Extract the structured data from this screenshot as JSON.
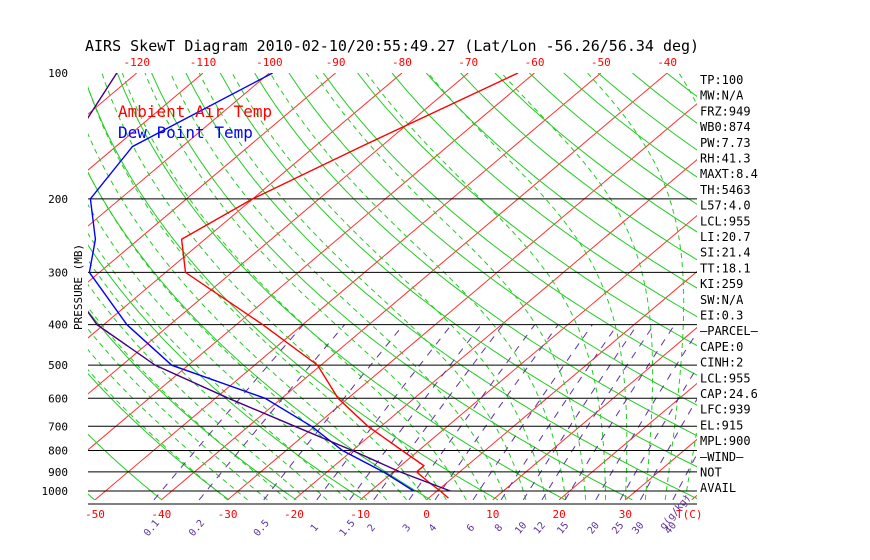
{
  "chart_data": {
    "type": "line",
    "title": "AIRS SkewT Diagram 2010-02-10/20:55:49.27 (Lat/Lon -56.26/56.34 deg)",
    "ylabel": "PRESSURE (MB)",
    "y_scale": "log",
    "ylim": [
      1050,
      100
    ],
    "top_temp_ticks": [
      "-120",
      "-110",
      "-100",
      "-90",
      "-80",
      "-70",
      "-60",
      "-50",
      "-40"
    ],
    "bottom_temp_ticks": [
      "-50",
      "-40",
      "-30",
      "-20",
      "-10",
      "0",
      "10",
      "20",
      "30"
    ],
    "bottom_temp_unit": "T(C)",
    "mixing_ratio_ticks": [
      "0.1",
      "0.2",
      "0.5",
      "1",
      "1.5",
      "2",
      "3",
      "4",
      "6",
      "8",
      "10",
      "12",
      "15",
      "20",
      "25",
      "30",
      "40"
    ],
    "mixing_ratio_unit": "g(g/kg)",
    "pressure_ticks": [
      "100",
      "200",
      "300",
      "400",
      "500",
      "600",
      "700",
      "800",
      "900",
      "1000"
    ],
    "legend": [
      {
        "name": "Ambient Air Temp",
        "color": "#ff0000"
      },
      {
        "name": "Dew Point Temp",
        "color": "#0000ff"
      }
    ],
    "series": [
      {
        "name": "Ambient Air Temp",
        "color": "#ff0000",
        "points": [
          {
            "p": 100,
            "t": -62.5
          },
          {
            "p": 150,
            "t": -73
          },
          {
            "p": 200,
            "t": -80
          },
          {
            "p": 250,
            "t": -83.5
          },
          {
            "p": 300,
            "t": -77
          },
          {
            "p": 400,
            "t": -56
          },
          {
            "p": 500,
            "t": -40.5
          },
          {
            "p": 600,
            "t": -31.5
          },
          {
            "p": 700,
            "t": -22
          },
          {
            "p": 800,
            "t": -12.5
          },
          {
            "p": 870,
            "t": -6.5
          },
          {
            "p": 900,
            "t": -6.5
          },
          {
            "p": 950,
            "t": -3
          },
          {
            "p": 1000,
            "t": 0.5
          }
        ]
      },
      {
        "name": "Dew Point Temp",
        "color": "#0000ff",
        "points": [
          {
            "p": 100,
            "t": -99.5
          },
          {
            "p": 150,
            "t": -107.5
          },
          {
            "p": 200,
            "t": -104.5
          },
          {
            "p": 250,
            "t": -96.5
          },
          {
            "p": 300,
            "t": -91.5
          },
          {
            "p": 400,
            "t": -76.5
          },
          {
            "p": 500,
            "t": -62.5
          },
          {
            "p": 600,
            "t": -42.5
          },
          {
            "p": 700,
            "t": -30.5
          },
          {
            "p": 800,
            "t": -21.5
          },
          {
            "p": 900,
            "t": -11.5
          },
          {
            "p": 1000,
            "t": -3.5
          }
        ]
      },
      {
        "name": "Parcel",
        "color": "#400080",
        "points": [
          {
            "p": 100,
            "t": -123
          },
          {
            "p": 150,
            "t": -117
          },
          {
            "p": 200,
            "t": -110
          },
          {
            "p": 250,
            "t": -103
          },
          {
            "p": 300,
            "t": -96
          },
          {
            "p": 400,
            "t": -81
          },
          {
            "p": 500,
            "t": -65
          },
          {
            "p": 600,
            "t": -48
          },
          {
            "p": 700,
            "t": -33
          },
          {
            "p": 800,
            "t": -20
          },
          {
            "p": 900,
            "t": -9
          },
          {
            "p": 1000,
            "t": 2
          }
        ]
      }
    ],
    "indices": [
      "TP:100",
      "MW:N/A",
      "FRZ:949",
      "WB0:874",
      "PW:7.73",
      "RH:41.3",
      "MAXT:8.4",
      "TH:5463",
      "L57:4.0",
      "LCL:955",
      "LI:20.7",
      "SI:21.4",
      "TT:18.1",
      "KI:259",
      "SW:N/A",
      "EI:0.3",
      "—PARCEL—",
      "CAPE:0",
      "CINH:2",
      "LCL:955",
      "CAP:24.6",
      "LFC:939",
      "EL:915",
      "MPL:900",
      "—WIND—",
      "NOT",
      "AVAIL"
    ],
    "grid": true
  }
}
